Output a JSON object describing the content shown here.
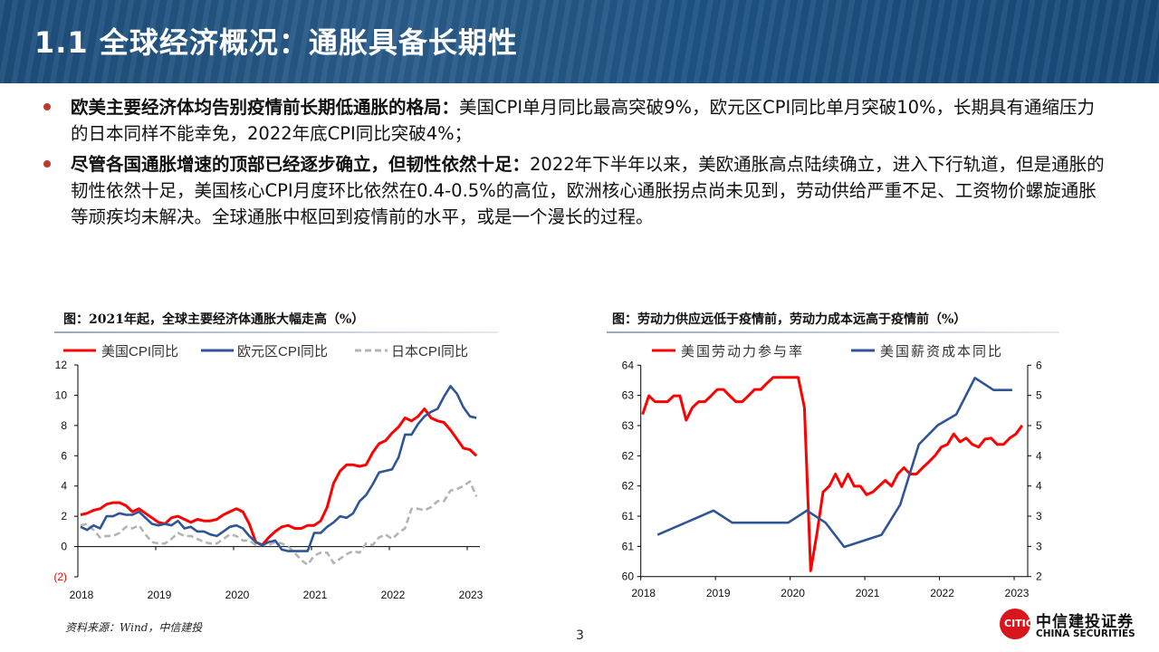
{
  "header": {
    "title": "1.1 全球经济概况：通胀具备长期性"
  },
  "bullets": [
    {
      "bold": "欧美主要经济体均告别疫情前长期低通胀的格局：",
      "text": "美国CPI单月同比最高突破9%，欧元区CPI同比单月突破10%，长期具有通缩压力的日本同样不能幸免，2022年底CPI同比突破4%；"
    },
    {
      "bold": "尽管各国通胀增速的顶部已经逐步确立，但韧性依然十足：",
      "text": "2022年下半年以来，美欧通胀高点陆续确立，进入下行轨道，但是通胀的韧性依然十足，美国核心CPI月度环比依然在0.4-0.5%的高位，欧洲核心通胀拐点尚未见到，劳动供给严重不足、工资物价螺旋通胀等顽疾均未解决。全球通胀中枢回到疫情前的水平，或是一个漫长的过程。"
    }
  ],
  "footer": {
    "source": "资料来源：Wind，中信建投",
    "page": "3",
    "logo_cn": "中信建投证券",
    "logo_en": "CHINA SECURITIES",
    "logo_seal": "CITIC"
  },
  "chart_data": [
    {
      "type": "line",
      "title": "图：2021年起，全球主要经济体通胀大幅走高（%）",
      "x_start": "2018-01",
      "frequency": "monthly",
      "xticks": [
        "2018",
        "2019",
        "2020",
        "2021",
        "2022",
        "2023"
      ],
      "ylim": [
        -2,
        12
      ],
      "yticks": [
        {
          "v": 12,
          "label": "12"
        },
        {
          "v": 10,
          "label": "10"
        },
        {
          "v": 8,
          "label": "8"
        },
        {
          "v": 6,
          "label": "6"
        },
        {
          "v": 4,
          "label": "4"
        },
        {
          "v": 2,
          "label": "2"
        },
        {
          "v": 0,
          "label": "0"
        },
        {
          "v": -2,
          "label": "(2)"
        }
      ],
      "legend": "top",
      "series": [
        {
          "name": "美国CPI同比",
          "color": "#ff0000",
          "style": "solid",
          "values": [
            2.1,
            2.2,
            2.4,
            2.5,
            2.8,
            2.9,
            2.9,
            2.7,
            2.3,
            2.5,
            2.2,
            1.9,
            1.6,
            1.5,
            1.9,
            2.0,
            1.8,
            1.6,
            1.8,
            1.7,
            1.7,
            1.8,
            2.1,
            2.3,
            2.5,
            2.3,
            1.5,
            0.3,
            0.1,
            0.6,
            1.0,
            1.3,
            1.4,
            1.2,
            1.2,
            1.4,
            1.4,
            1.7,
            2.6,
            4.2,
            5.0,
            5.4,
            5.4,
            5.3,
            5.4,
            6.2,
            6.8,
            7.0,
            7.5,
            7.9,
            8.5,
            8.3,
            8.6,
            9.1,
            8.5,
            8.3,
            8.2,
            7.7,
            7.1,
            6.5,
            6.4,
            6.0
          ]
        },
        {
          "name": "欧元区CPI同比",
          "color": "#2f5597",
          "style": "solid",
          "values": [
            1.3,
            1.1,
            1.4,
            1.2,
            2.0,
            2.0,
            2.2,
            2.1,
            2.1,
            2.3,
            1.9,
            1.5,
            1.4,
            1.5,
            1.4,
            1.7,
            1.2,
            1.3,
            1.0,
            1.0,
            0.8,
            0.7,
            1.0,
            1.3,
            1.4,
            1.2,
            0.7,
            0.3,
            0.1,
            0.3,
            0.4,
            -0.2,
            -0.3,
            -0.3,
            -0.3,
            -0.3,
            0.9,
            0.9,
            1.3,
            1.6,
            2.0,
            1.9,
            2.2,
            3.0,
            3.4,
            4.1,
            4.9,
            5.0,
            5.1,
            5.9,
            7.4,
            7.4,
            8.1,
            8.6,
            8.9,
            9.1,
            9.9,
            10.6,
            10.1,
            9.2,
            8.6,
            8.5
          ]
        },
        {
          "name": "日本CPI同比",
          "color": "#b4b4b4",
          "style": "dashed",
          "values": [
            1.4,
            1.5,
            1.1,
            0.6,
            0.7,
            0.7,
            0.9,
            1.3,
            1.2,
            1.4,
            0.8,
            0.3,
            0.2,
            0.2,
            0.5,
            0.9,
            0.7,
            0.7,
            0.5,
            0.3,
            0.2,
            0.2,
            0.5,
            0.8,
            0.7,
            0.4,
            0.4,
            0.1,
            0.1,
            0.1,
            0.3,
            0.2,
            0.0,
            -0.4,
            -0.9,
            -1.2,
            -0.6,
            -0.4,
            -0.4,
            -1.1,
            -0.8,
            -0.5,
            -0.3,
            -0.4,
            0.2,
            0.1,
            0.6,
            0.8,
            0.5,
            0.9,
            1.2,
            2.5,
            2.5,
            2.4,
            2.6,
            3.0,
            3.0,
            3.7,
            3.8,
            4.0,
            4.3,
            3.3
          ]
        }
      ]
    },
    {
      "type": "line",
      "title": "图：劳动力供应远低于疫情前，劳动力成本远高于疫情前（%）",
      "x_start": "2018-01",
      "xticks": [
        "2018",
        "2019",
        "2020",
        "2021",
        "2022",
        "2023"
      ],
      "ylim_left": [
        60,
        64
      ],
      "ylim_right": [
        2,
        6
      ],
      "yticks_left": [
        "64",
        "63",
        "63",
        "62",
        "62",
        "61",
        "61",
        "60"
      ],
      "yticks_right": [
        "6",
        "5",
        "5",
        "4",
        "4",
        "3",
        "3",
        "2"
      ],
      "legend": "top",
      "series": [
        {
          "name": "美国劳动力参与率",
          "color": "#ff0000",
          "axis": "left",
          "frequency": "monthly",
          "values": [
            63.07,
            63.42,
            63.31,
            63.31,
            63.31,
            63.42,
            63.42,
            62.96,
            63.2,
            63.31,
            63.31,
            63.42,
            63.54,
            63.54,
            63.42,
            63.31,
            63.31,
            63.42,
            63.54,
            63.54,
            63.66,
            63.77,
            63.77,
            63.77,
            63.77,
            63.77,
            63.2,
            60.11,
            60.8,
            61.6,
            61.71,
            61.94,
            61.7,
            61.94,
            61.71,
            61.71,
            61.55,
            61.6,
            61.71,
            61.82,
            61.71,
            61.94,
            62.06,
            61.94,
            61.94,
            62.06,
            62.17,
            62.29,
            62.45,
            62.5,
            62.7,
            62.55,
            62.62,
            62.5,
            62.45,
            62.6,
            62.62,
            62.5,
            62.5,
            62.62,
            62.7,
            62.86
          ]
        },
        {
          "name": "美国薪资成本同比",
          "color": "#2f5597",
          "axis": "right",
          "frequency": "quarterly",
          "points": [
            [
              "2018-03",
              2.79
            ],
            [
              "2018-12",
              3.25
            ],
            [
              "2019-03",
              3.02
            ],
            [
              "2019-12",
              3.02
            ],
            [
              "2020-03",
              3.25
            ],
            [
              "2020-06",
              3.02
            ],
            [
              "2020-09",
              2.56
            ],
            [
              "2021-03",
              2.79
            ],
            [
              "2021-06",
              3.36
            ],
            [
              "2021-09",
              4.5
            ],
            [
              "2021-12",
              4.86
            ],
            [
              "2022-03",
              5.07
            ],
            [
              "2022-06",
              5.76
            ],
            [
              "2022-09",
              5.53
            ],
            [
              "2022-12",
              5.53
            ]
          ]
        }
      ]
    }
  ]
}
